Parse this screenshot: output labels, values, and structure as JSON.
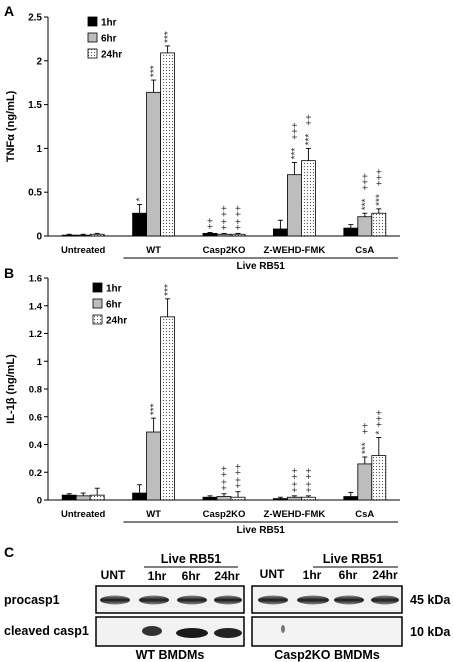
{
  "panel_letters": {
    "a": "A",
    "b": "B",
    "c": "C"
  },
  "legend": {
    "s1": "1hr",
    "s2": "6hr",
    "s3": "24hr"
  },
  "group_label": "Live RB51",
  "chart_data": [
    {
      "type": "bar",
      "panel": "A",
      "ylabel": "TNFα (ng/mL)",
      "ylim": [
        0,
        2.5
      ],
      "yticks": [
        "0",
        "0.5",
        "1",
        "1.5",
        "2",
        "2.5"
      ],
      "categories": [
        "Untreated",
        "WT",
        "Casp2KO",
        "Z-WEHD-FMK",
        "CsA"
      ],
      "series": [
        {
          "name": "1hr",
          "values": [
            0.01,
            0.26,
            0.03,
            0.08,
            0.09
          ],
          "errors": [
            0.01,
            0.1,
            0.01,
            0.1,
            0.04
          ]
        },
        {
          "name": "6hr",
          "values": [
            0.01,
            1.64,
            0.02,
            0.7,
            0.22
          ],
          "errors": [
            0.01,
            0.14,
            0.01,
            0.14,
            0.04
          ]
        },
        {
          "name": "24hr",
          "values": [
            0.02,
            2.09,
            0.02,
            0.86,
            0.26
          ],
          "errors": [
            0.01,
            0.08,
            0.01,
            0.14,
            0.05
          ]
        }
      ],
      "annotations": [
        {
          "category": "WT",
          "series": "1hr",
          "text": "*"
        },
        {
          "category": "WT",
          "series": "6hr",
          "text": "***"
        },
        {
          "category": "WT",
          "series": "24hr",
          "text": "***"
        },
        {
          "category": "Casp2KO",
          "series": "1hr",
          "text": "++"
        },
        {
          "category": "Casp2KO",
          "series": "6hr",
          "text": "++"
        },
        {
          "category": "Casp2KO",
          "series": "6hr",
          "text": "++"
        },
        {
          "category": "Casp2KO",
          "series": "24hr",
          "text": "++"
        },
        {
          "category": "Casp2KO",
          "series": "24hr",
          "text": "++"
        },
        {
          "category": "Z-WEHD-FMK",
          "series": "6hr",
          "text": "***"
        },
        {
          "category": "Z-WEHD-FMK",
          "series": "6hr",
          "text": "+++"
        },
        {
          "category": "Z-WEHD-FMK",
          "series": "24hr",
          "text": "***"
        },
        {
          "category": "Z-WEHD-FMK",
          "series": "24hr",
          "text": "++"
        },
        {
          "category": "CsA",
          "series": "6hr",
          "text": "***"
        },
        {
          "category": "CsA",
          "series": "6hr",
          "text": "+++"
        },
        {
          "category": "CsA",
          "series": "24hr",
          "text": "***"
        },
        {
          "category": "CsA",
          "series": "24hr",
          "text": "+++"
        }
      ]
    },
    {
      "type": "bar",
      "panel": "B",
      "ylabel": "IL-1β (ng/mL)",
      "ylim": [
        0,
        1.6
      ],
      "yticks": [
        "0",
        "0.2",
        "0.4",
        "0.6",
        "0.8",
        "1",
        "1.2",
        "1.4",
        "1.6"
      ],
      "categories": [
        "Untreated",
        "WT",
        "Casp2KO",
        "Z-WEHD-FMK",
        "CsA"
      ],
      "series": [
        {
          "name": "1hr",
          "values": [
            0.035,
            0.05,
            0.02,
            0.01,
            0.025
          ],
          "errors": [
            0.01,
            0.06,
            0.01,
            0.01,
            0.03
          ]
        },
        {
          "name": "6hr",
          "values": [
            0.03,
            0.49,
            0.025,
            0.02,
            0.26
          ],
          "errors": [
            0.02,
            0.1,
            0.02,
            0.01,
            0.05
          ]
        },
        {
          "name": "24hr",
          "values": [
            0.035,
            1.32,
            0.02,
            0.02,
            0.32
          ],
          "errors": [
            0.05,
            0.13,
            0.04,
            0.01,
            0.13
          ]
        }
      ],
      "annotations": [
        {
          "category": "WT",
          "series": "6hr",
          "text": "***"
        },
        {
          "category": "WT",
          "series": "24hr",
          "text": "***"
        },
        {
          "category": "Casp2KO",
          "series": "6hr",
          "text": "++"
        },
        {
          "category": "Casp2KO",
          "series": "6hr",
          "text": "++"
        },
        {
          "category": "Casp2KO",
          "series": "24hr",
          "text": "++"
        },
        {
          "category": "Casp2KO",
          "series": "24hr",
          "text": "++"
        },
        {
          "category": "Z-WEHD-FMK",
          "series": "6hr",
          "text": "++"
        },
        {
          "category": "Z-WEHD-FMK",
          "series": "6hr",
          "text": "++"
        },
        {
          "category": "Z-WEHD-FMK",
          "series": "24hr",
          "text": "++"
        },
        {
          "category": "Z-WEHD-FMK",
          "series": "24hr",
          "text": "++"
        },
        {
          "category": "CsA",
          "series": "6hr",
          "text": "***"
        },
        {
          "category": "CsA",
          "series": "6hr",
          "text": "++"
        },
        {
          "category": "CsA",
          "series": "24hr",
          "text": "*"
        },
        {
          "category": "CsA",
          "series": "24hr",
          "text": "+++"
        }
      ]
    }
  ],
  "blot": {
    "group_label": "Live RB51",
    "lanes": [
      "UNT",
      "1hr",
      "6hr",
      "24hr"
    ],
    "rows": [
      "procasp1",
      "cleaved casp1"
    ],
    "sizes": [
      "45 kDa",
      "10 kDa"
    ],
    "panels": [
      "WT BMDMs",
      "Casp2KO BMDMs"
    ]
  }
}
